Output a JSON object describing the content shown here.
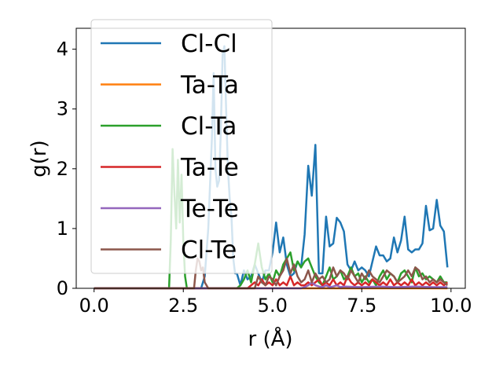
{
  "chart_data": {
    "type": "line",
    "title": "",
    "xlabel": "r (Å)",
    "ylabel": "g(r)",
    "xlim": [
      -0.5,
      10.4
    ],
    "ylim": [
      0,
      4.35
    ],
    "xticks": [
      0.0,
      2.5,
      5.0,
      7.5,
      10.0
    ],
    "xtick_labels": [
      "0.0",
      "2.5",
      "5.0",
      "7.5",
      "10.0"
    ],
    "yticks": [
      0,
      1,
      2,
      3,
      4
    ],
    "ytick_labels": [
      "0",
      "1",
      "2",
      "3",
      "4"
    ],
    "grid": false,
    "legend_position": "top-left",
    "series": [
      {
        "name": "Cl-Cl",
        "color": "#1f77b4",
        "x": [
          0,
          3.0,
          3.1,
          3.2,
          3.3,
          3.35,
          3.4,
          3.45,
          3.5,
          3.55,
          3.6,
          3.65,
          3.7,
          3.75,
          3.8,
          3.85,
          3.9,
          3.95,
          4.0,
          4.1,
          4.2,
          4.3,
          4.4,
          4.5,
          4.6,
          4.7,
          4.8,
          4.9,
          5.0,
          5.1,
          5.2,
          5.3,
          5.4,
          5.5,
          5.6,
          5.7,
          5.8,
          5.9,
          6.0,
          6.1,
          6.2,
          6.3,
          6.4,
          6.5,
          6.6,
          6.7,
          6.8,
          6.9,
          7.0,
          7.1,
          7.2,
          7.3,
          7.4,
          7.5,
          7.6,
          7.7,
          7.8,
          7.9,
          8.0,
          8.1,
          8.2,
          8.3,
          8.4,
          8.5,
          8.6,
          8.7,
          8.8,
          8.9,
          9.0,
          9.1,
          9.2,
          9.3,
          9.4,
          9.5,
          9.6,
          9.7,
          9.8,
          9.9
        ],
        "y": [
          0,
          0,
          0.2,
          1.0,
          2.5,
          3.6,
          2.0,
          1.7,
          1.8,
          2.6,
          3.9,
          4.05,
          3.0,
          2.0,
          1.5,
          1.2,
          0.5,
          0.25,
          0.25,
          0.05,
          0.3,
          0.15,
          0.2,
          0.4,
          0.25,
          0.1,
          0.3,
          0.3,
          0.6,
          1.1,
          0.6,
          0.85,
          0.4,
          0.2,
          0.25,
          0.45,
          0.35,
          0.9,
          2.05,
          1.55,
          2.4,
          0.25,
          0.25,
          1.2,
          0.7,
          0.75,
          1.18,
          1.1,
          0.95,
          0.4,
          0.3,
          0.45,
          0.3,
          0.35,
          0.3,
          0.2,
          0.45,
          0.7,
          0.55,
          0.55,
          0.45,
          0.5,
          0.85,
          0.6,
          0.8,
          1.2,
          0.65,
          0.6,
          0.65,
          0.65,
          0.75,
          1.38,
          0.97,
          1.0,
          1.48,
          1.05,
          0.95,
          0.35
        ]
      },
      {
        "name": "Ta-Ta",
        "color": "#ff7f0e",
        "x": [
          0,
          9.9
        ],
        "y": [
          0,
          0
        ]
      },
      {
        "name": "Cl-Ta",
        "color": "#2ca02c",
        "x": [
          0,
          2.1,
          2.15,
          2.2,
          2.25,
          2.3,
          2.35,
          2.4,
          2.45,
          2.5,
          2.55,
          2.6,
          2.7,
          4.0,
          4.1,
          4.2,
          4.3,
          4.4,
          4.5,
          4.6,
          4.7,
          4.8,
          4.9,
          5.0,
          5.1,
          5.2,
          5.3,
          5.4,
          5.5,
          5.6,
          5.7,
          5.8,
          5.9,
          6.0,
          6.1,
          6.2,
          6.3,
          6.4,
          6.5,
          6.6,
          6.7,
          6.8,
          6.9,
          7.0,
          7.1,
          7.2,
          7.3,
          7.4,
          7.5,
          7.6,
          7.7,
          7.8,
          7.9,
          8.0,
          8.1,
          8.2,
          8.3,
          8.4,
          8.5,
          8.6,
          8.7,
          8.8,
          8.9,
          9.0,
          9.1,
          9.2,
          9.3,
          9.4,
          9.5,
          9.6,
          9.7,
          9.8,
          9.9
        ],
        "y": [
          0,
          0,
          0.8,
          2.33,
          1.6,
          1.0,
          2.15,
          1.1,
          1.9,
          0.8,
          0.2,
          0,
          0,
          0,
          0.05,
          0.15,
          0.3,
          0.1,
          0.4,
          0.75,
          0.35,
          0.15,
          0.25,
          0.1,
          0.3,
          0.2,
          0.4,
          0.5,
          0.6,
          0.3,
          0.45,
          0.35,
          0.45,
          0.5,
          0.35,
          0.2,
          0.1,
          0.05,
          0.2,
          0.35,
          0.15,
          0.2,
          0.3,
          0.15,
          0.2,
          0.35,
          0.2,
          0.25,
          0.1,
          0.2,
          0.1,
          0.15,
          0.05,
          0.2,
          0.3,
          0.15,
          0.25,
          0.2,
          0.1,
          0.25,
          0.3,
          0.2,
          0.1,
          0.35,
          0.2,
          0.25,
          0.15,
          0.2,
          0.15,
          0.1,
          0.2,
          0.1,
          0.1
        ]
      },
      {
        "name": "Ta-Te",
        "color": "#d62728",
        "x": [
          0,
          4.3,
          4.4,
          4.5,
          4.6,
          4.7,
          4.8,
          4.9,
          5.0,
          5.1,
          5.2,
          5.3,
          5.4,
          5.5,
          5.6,
          5.7,
          5.8,
          5.9,
          6.0,
          6.1,
          6.2,
          6.3,
          6.4,
          6.5,
          6.6,
          6.7,
          6.8,
          6.9,
          7.0,
          7.1,
          7.2,
          7.3,
          7.4,
          7.5,
          7.6,
          7.7,
          7.8,
          7.9,
          8.0,
          8.1,
          8.2,
          8.3,
          8.4,
          8.5,
          8.6,
          8.7,
          8.8,
          8.9,
          9.0,
          9.1,
          9.2,
          9.3,
          9.4,
          9.5,
          9.6,
          9.7,
          9.8,
          9.9
        ],
        "y": [
          0,
          0,
          0.05,
          0.1,
          0.05,
          0.15,
          0.05,
          0.1,
          0.05,
          0.15,
          0.05,
          0.1,
          0.05,
          0.2,
          0.05,
          0.1,
          0.05,
          0.05,
          0.1,
          0.05,
          0.1,
          0.15,
          0.05,
          0.1,
          0.05,
          0.15,
          0.05,
          0.1,
          0.05,
          0.2,
          0.1,
          0.05,
          0.1,
          0.05,
          0.1,
          0.05,
          0.15,
          0.1,
          0.05,
          0.1,
          0.05,
          0.15,
          0.05,
          0.1,
          0.05,
          0.1,
          0.05,
          0.15,
          0.05,
          0.1,
          0.05,
          0.1,
          0.05,
          0.1,
          0.05,
          0.1,
          0.05,
          0.1
        ]
      },
      {
        "name": "Te-Te",
        "color": "#9467bd",
        "x": [
          0,
          5.8,
          5.9,
          6.0,
          6.1,
          6.2,
          6.3,
          6.4,
          6.5,
          6.6,
          6.7,
          6.8,
          6.9,
          7.0,
          7.5,
          8.0,
          8.5,
          9.0,
          9.5,
          9.9
        ],
        "y": [
          0,
          0,
          0.02,
          0.05,
          0.1,
          0.05,
          0.03,
          0.02,
          0.05,
          0.02,
          0.03,
          0.05,
          0.02,
          0.03,
          0.02,
          0.03,
          0.02,
          0.03,
          0.02,
          0.02
        ]
      },
      {
        "name": "Cl-Te",
        "color": "#8c564b",
        "x": [
          0,
          2.8,
          2.85,
          2.9,
          2.95,
          3.0,
          3.05,
          3.1,
          3.2,
          4.5,
          4.6,
          4.7,
          4.8,
          4.9,
          5.0,
          5.1,
          5.2,
          5.3,
          5.4,
          5.5,
          5.6,
          5.7,
          5.8,
          5.9,
          6.0,
          6.1,
          6.2,
          6.3,
          6.4,
          6.5,
          6.6,
          6.7,
          6.8,
          6.9,
          7.0,
          7.1,
          7.2,
          7.3,
          7.4,
          7.5,
          7.6,
          7.7,
          7.8,
          7.9,
          8.0,
          8.1,
          8.2,
          8.3,
          8.4,
          8.5,
          8.6,
          8.7,
          8.8,
          8.9,
          9.0,
          9.1,
          9.2,
          9.3,
          9.4,
          9.5,
          9.6,
          9.7,
          9.8,
          9.9
        ],
        "y": [
          0,
          0,
          0.3,
          0.5,
          0.45,
          0.3,
          0.35,
          0.1,
          0,
          0,
          0.2,
          0.1,
          0.05,
          0.2,
          0.15,
          0.05,
          0.2,
          0.3,
          0.5,
          0.25,
          0.4,
          0.2,
          0.1,
          0.15,
          0.3,
          0.1,
          0.25,
          0.15,
          0.2,
          0.1,
          0.15,
          0.35,
          0.2,
          0.3,
          0.25,
          0.15,
          0.3,
          0.2,
          0.1,
          0.25,
          0.15,
          0.3,
          0.2,
          0.15,
          0.1,
          0.2,
          0.3,
          0.25,
          0.2,
          0.1,
          0.15,
          0.2,
          0.3,
          0.2,
          0.35,
          0.3,
          0.15,
          0.2,
          0.1,
          0.15,
          0.1,
          0.15,
          0.1,
          0.05
        ]
      }
    ]
  }
}
